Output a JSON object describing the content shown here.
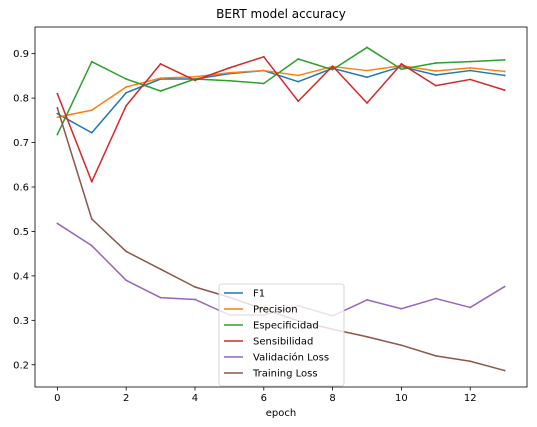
{
  "chart_data": {
    "type": "line",
    "title": "BERT model accuracy",
    "xlabel": "epoch",
    "ylabel": "",
    "xlim": [
      -0.65,
      13.65
    ],
    "ylim": [
      0.15,
      0.96
    ],
    "xticks": [
      0,
      2,
      4,
      6,
      8,
      10,
      12
    ],
    "yticks": [
      0.2,
      0.3,
      0.4,
      0.5,
      0.6,
      0.7,
      0.8,
      0.9
    ],
    "grid": false,
    "legend_position": "lower center",
    "x": [
      0,
      1,
      2,
      3,
      4,
      5,
      6,
      7,
      8,
      9,
      10,
      11,
      12,
      13
    ],
    "series": [
      {
        "name": "F1",
        "color": "#1f77b4",
        "values": [
          0.765,
          0.722,
          0.812,
          0.843,
          0.843,
          0.855,
          0.862,
          0.837,
          0.867,
          0.847,
          0.871,
          0.852,
          0.862,
          0.851
        ]
      },
      {
        "name": "Precision",
        "color": "#ff7f0e",
        "values": [
          0.757,
          0.773,
          0.825,
          0.845,
          0.848,
          0.857,
          0.862,
          0.851,
          0.871,
          0.862,
          0.873,
          0.861,
          0.868,
          0.86
        ]
      },
      {
        "name": "Especificidad",
        "color": "#2ca02c",
        "values": [
          0.718,
          0.882,
          0.843,
          0.816,
          0.843,
          0.839,
          0.833,
          0.888,
          0.864,
          0.914,
          0.865,
          0.879,
          0.882,
          0.886
        ]
      },
      {
        "name": "Sensibilidad",
        "color": "#d62728",
        "values": [
          0.81,
          0.612,
          0.783,
          0.877,
          0.84,
          0.868,
          0.893,
          0.793,
          0.872,
          0.789,
          0.877,
          0.828,
          0.842,
          0.818
        ]
      },
      {
        "name": "Validación Loss",
        "color": "#9467bd",
        "values": [
          0.518,
          0.468,
          0.39,
          0.351,
          0.347,
          0.312,
          0.312,
          0.333,
          0.31,
          0.346,
          0.326,
          0.349,
          0.329,
          0.376
        ]
      },
      {
        "name": "Training Loss",
        "color": "#8c564b",
        "values": [
          0.778,
          0.528,
          0.455,
          0.415,
          0.375,
          0.352,
          0.325,
          0.299,
          0.28,
          0.263,
          0.244,
          0.22,
          0.208,
          0.187
        ]
      }
    ]
  }
}
